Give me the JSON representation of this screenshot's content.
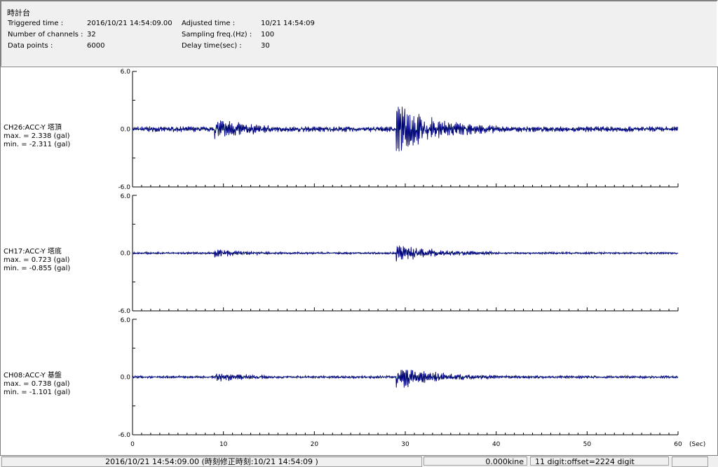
{
  "header": {
    "title": "時計台",
    "triggered_label": "Triggered time :",
    "triggered_value": "2016/10/21 14:54:09.00",
    "channels_label": "Number of channels :",
    "channels_value": "32",
    "points_label": "Data points :",
    "points_value": "6000",
    "adjusted_label": "Adjusted time :",
    "adjusted_value": "10/21 14:54:09",
    "sampling_label": "Sampling freq.(Hz) :",
    "sampling_value": "100",
    "delay_label": "Delay time(sec) :",
    "delay_value": "30"
  },
  "chart_data": {
    "type": "line",
    "xlabel": "(Sec)",
    "xlim": [
      0,
      60
    ],
    "xticks": [
      "0",
      "10",
      "20",
      "30",
      "40",
      "50",
      "60"
    ],
    "ylim": [
      -6,
      6
    ],
    "yticks": [
      "6.0",
      "0.0",
      "-6.0"
    ],
    "colors": {
      "main": "#000080",
      "secondary": "#00a000"
    },
    "panels": [
      {
        "name": "CH26:ACC-Y 塔頂",
        "max": "max. = 2.338 (gal)",
        "min": "min. = -2.311 (gal)",
        "maxv": 2.338,
        "minv": -2.311
      },
      {
        "name": "CH17:ACC-Y 塔底",
        "max": "max. = 0.723 (gal)",
        "min": "min. = -0.855 (gal)",
        "maxv": 0.723,
        "minv": -0.855
      },
      {
        "name": "CH08:ACC-Y 基盤",
        "max": "max. = 0.738 (gal)",
        "min": "min. = -1.101 (gal)",
        "maxv": 0.738,
        "minv": -1.101
      }
    ]
  },
  "status": {
    "time": "2016/10/21 14:54:09.00  (時刻修正時刻:10/21 14:54:09  )",
    "kine": "0.000kine",
    "digit": "11 digit:offset=2224 digit"
  }
}
